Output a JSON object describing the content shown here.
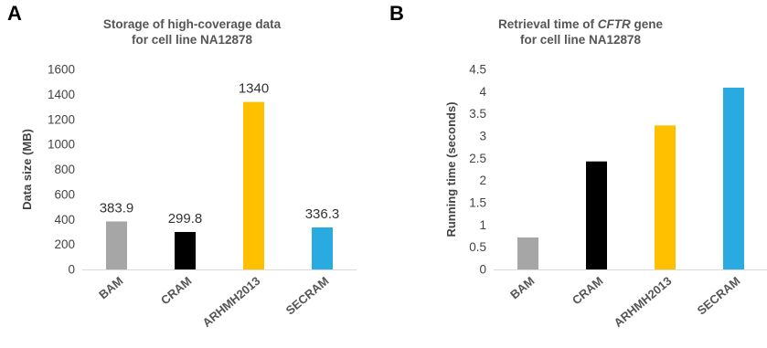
{
  "chart_data": [
    {
      "panel": "A",
      "type": "bar",
      "title": "Storage of high-coverage data",
      "subtitle": "for cell line NA12878",
      "xlabel": "",
      "ylabel": "Data size (MB)",
      "categories": [
        "BAM",
        "CRAM",
        "ARHMH2013",
        "SECRAM"
      ],
      "values": [
        383.9,
        299.8,
        1340,
        336.3
      ],
      "data_labels": [
        "383.9",
        "299.8",
        "1340",
        "336.3"
      ],
      "colors": [
        "#A6A6A6",
        "#000000",
        "#FFC000",
        "#29ABE2"
      ],
      "ylim": [
        0,
        1600
      ],
      "yticks": [
        "0",
        "200",
        "400",
        "600",
        "800",
        "1000",
        "1200",
        "1400",
        "1600"
      ],
      "grid": false,
      "legend": "none"
    },
    {
      "panel": "B",
      "type": "bar",
      "title": "Retrieval time of ",
      "title_italic": "CFTR",
      "title_suffix": " gene",
      "subtitle": "for cell line NA12878",
      "xlabel": "",
      "ylabel": "Running time (seconds)",
      "categories": [
        "BAM",
        "CRAM",
        "ARHMH2013",
        "SECRAM"
      ],
      "values": [
        0.72,
        2.43,
        3.24,
        4.09
      ],
      "colors": [
        "#A6A6A6",
        "#000000",
        "#FFC000",
        "#29ABE2"
      ],
      "ylim": [
        0,
        4.5
      ],
      "yticks": [
        "0",
        "0.5",
        "1",
        "1.5",
        "2",
        "2.5",
        "3",
        "3.5",
        "4",
        "4.5"
      ],
      "grid": false,
      "legend": "none"
    }
  ]
}
